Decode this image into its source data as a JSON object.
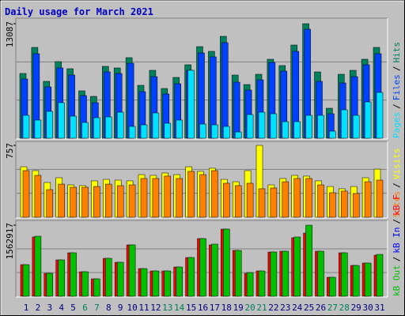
{
  "separator": "/",
  "chart_data": [
    {
      "type": "bar",
      "title": "Daily usage for March 2021",
      "ylim": [
        0,
        13087
      ],
      "yticks": [
        13087
      ],
      "series": [
        {
          "name": "Hits",
          "color": "#00805c",
          "values": [
            7401,
            10380,
            6499,
            8755,
            7943,
            5416,
            4784,
            8214,
            8033,
            9207,
            6047,
            7762,
            5686,
            6950,
            8394,
            10470,
            9929,
            11644,
            7221,
            6138,
            7311,
            9026,
            8304,
            10651,
            13087,
            7582,
            3430,
            7311,
            7762,
            9026,
            10380
          ]
        },
        {
          "name": "Files",
          "color": "#0040ff",
          "values": [
            6770,
            9658,
            5867,
            8033,
            7221,
            4874,
            4062,
            7582,
            7401,
            8575,
            5325,
            7040,
            5055,
            6228,
            7762,
            9748,
            9297,
            10921,
            6408,
            5506,
            6679,
            8665,
            7672,
            9929,
            12456,
            6499,
            2798,
            6318,
            7040,
            8394,
            9658
          ]
        },
        {
          "name": "Pages",
          "color": "#00e0ff",
          "values": [
            2618,
            2076,
            3069,
            4062,
            2527,
            1805,
            2347,
            2437,
            2979,
            1354,
            1534,
            2888,
            1715,
            2076,
            7762,
            1625,
            1534,
            1354,
            722,
            2708,
            2979,
            2798,
            1895,
            1895,
            2618,
            2618,
            812,
            3249,
            2618,
            4152,
            5235
          ]
        }
      ]
    },
    {
      "type": "bar",
      "ylim": [
        0,
        757
      ],
      "yticks": [
        757
      ],
      "series": [
        {
          "name": "Visits",
          "color": "#ffff00",
          "values": [
            532,
            491,
            366,
            416,
            341,
            333,
            383,
            399,
            391,
            383,
            449,
            441,
            466,
            449,
            532,
            483,
            516,
            399,
            374,
            491,
            757,
            341,
            408,
            441,
            433,
            383,
            324,
            300,
            324,
            416,
            507
          ]
        },
        {
          "name": "Sites",
          "color": "#ff8000",
          "values": [
            491,
            441,
            291,
            349,
            316,
            316,
            324,
            349,
            333,
            341,
            408,
            408,
            433,
            408,
            483,
            449,
            491,
            358,
            333,
            358,
            300,
            308,
            374,
            408,
            408,
            341,
            258,
            275,
            250,
            374,
            391
          ]
        }
      ]
    },
    {
      "type": "bar",
      "ylim": [
        0,
        1562917
      ],
      "yticks": [
        1562917
      ],
      "categories": [
        "1",
        "2",
        "3",
        "4",
        "5",
        "6",
        "7",
        "8",
        "9",
        "10",
        "11",
        "12",
        "13",
        "14",
        "15",
        "16",
        "17",
        "18",
        "19",
        "20",
        "21",
        "22",
        "23",
        "24",
        "25",
        "26",
        "27",
        "28",
        "29",
        "30",
        "31"
      ],
      "label_colors": [
        "#000080",
        "#000080",
        "#000080",
        "#000080",
        "#000080",
        "#00805c",
        "#00805c",
        "#000080",
        "#000080",
        "#000080",
        "#000080",
        "#000080",
        "#00805c",
        "#00805c",
        "#000080",
        "#000080",
        "#000080",
        "#000080",
        "#000080",
        "#00805c",
        "#00805c",
        "#000080",
        "#000080",
        "#000080",
        "#000080",
        "#000080",
        "#00805c",
        "#00805c",
        "#000080",
        "#000080",
        "#000080"
      ],
      "series": [
        {
          "name": "kB F",
          "color": "#ff0000",
          "values": [
            694640,
            1302450,
            503614,
            798836,
            955130,
            538346,
            382052,
            833568,
            746738,
            1128790,
            607810,
            555712,
            555712,
            642542,
            850934,
            1267718,
            1128790,
            1476110,
            1007228,
            503614,
            555712,
            972496,
            989862,
            1285084,
            1389280,
            989862,
            416784,
            955130,
            677274,
            729372,
            903032
          ]
        },
        {
          "name": "kB In",
          "color": "#0000ff",
          "values": [
            null,
            null,
            null,
            null,
            null,
            null,
            null,
            null,
            null,
            null,
            null,
            null,
            null,
            null,
            null,
            null,
            null,
            null,
            null,
            null,
            null,
            null,
            null,
            null,
            null,
            null,
            null,
            null,
            null,
            null,
            null
          ]
        },
        {
          "name": "kB Out",
          "color": "#00c000",
          "values": [
            694640,
            1319816,
            503614,
            798836,
            955130,
            538346,
            382052,
            833568,
            746738,
            1128790,
            607810,
            555712,
            555712,
            642542,
            850934,
            1267718,
            1146156,
            1476110,
            1007228,
            520980,
            555712,
            972496,
            989862,
            1302450,
            1562917,
            989862,
            416784,
            955130,
            677274,
            729372,
            920398
          ]
        }
      ]
    }
  ]
}
